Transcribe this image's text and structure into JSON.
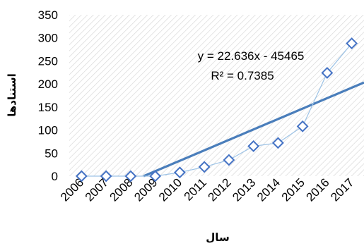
{
  "chart_data": {
    "type": "scatter",
    "x": [
      "2006",
      "2007",
      "2008",
      "2009",
      "2010",
      "2011",
      "2012",
      "2013",
      "2014",
      "2015",
      "2016",
      "2017"
    ],
    "series": [
      {
        "values": [
          0,
          0,
          0,
          0,
          8,
          20,
          35,
          65,
          72,
          108,
          224,
          288
        ]
      }
    ],
    "trendline": {
      "type": "linear",
      "equation": "y = 22.636x - 45465",
      "r_squared": "R² = 0.7385",
      "slope": 22.636,
      "intercept": -45465
    },
    "ylim": [
      0,
      350
    ],
    "yticks": [
      "0",
      "50",
      "100",
      "150",
      "200",
      "250",
      "300",
      "350"
    ],
    "xlabel": "سال",
    "ylabel": "استنادها",
    "grid": false,
    "plot_background": "diagonal-hatch",
    "colors": {
      "series": "#4472C4",
      "connector": "#9DC3E6",
      "trendline": "#4A7EBB"
    }
  }
}
